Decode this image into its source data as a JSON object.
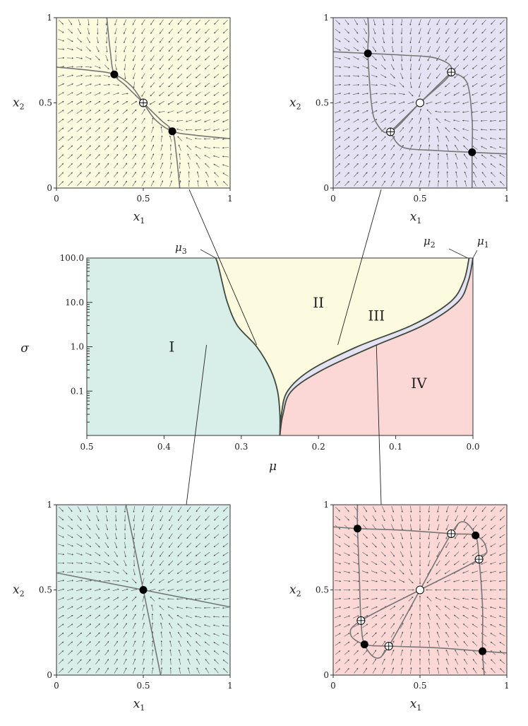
{
  "colors": {
    "region_I": "#d7eee9",
    "region_II": "#fcfbdf",
    "region_III": "#e4e2f3",
    "region_IV": "#fbd7d6",
    "boundary": "#3e4a3e",
    "nullcline": "#777777",
    "arrow": "#555555"
  },
  "chart_data": [
    {
      "id": "phase-diagram",
      "type": "area",
      "xlabel": "μ",
      "ylabel": "σ",
      "x_ticks": [
        "0.5",
        "0.4",
        "0.3",
        "0.2",
        "0.1",
        "0.0"
      ],
      "y_ticks": [
        "0.1",
        "1.0",
        "10.0",
        "100.0"
      ],
      "xlim": [
        0.5,
        0.0
      ],
      "ylim": [
        0.01,
        100
      ],
      "y_scale": "log",
      "regions": [
        "I",
        "II",
        "III",
        "IV"
      ],
      "boundary_labels": [
        {
          "symbol": "μ",
          "sub": "3"
        },
        {
          "symbol": "μ",
          "sub": "2"
        },
        {
          "symbol": "μ",
          "sub": "1"
        }
      ],
      "boundaries": {
        "mu3": {
          "mu": [
            0.25,
            0.25,
            0.253,
            0.262,
            0.28,
            0.305,
            0.318,
            0.325,
            0.33,
            0.333
          ],
          "sigma": [
            0.01,
            0.03,
            0.1,
            0.3,
            1.0,
            3.0,
            10,
            30,
            70,
            100
          ]
        },
        "mu2": {
          "mu": [
            0.25,
            0.248,
            0.24,
            0.21,
            0.15,
            0.08,
            0.03,
            0.012,
            0.005
          ],
          "sigma": [
            0.01,
            0.03,
            0.1,
            0.3,
            1.0,
            3.0,
            10,
            30,
            100
          ]
        },
        "mu1": {
          "mu": [
            0.25,
            0.246,
            0.235,
            0.195,
            0.13,
            0.065,
            0.02,
            0.006,
            0.0
          ],
          "sigma": [
            0.01,
            0.03,
            0.1,
            0.3,
            1.0,
            3.0,
            10,
            30,
            100
          ]
        }
      }
    },
    {
      "id": "phase-portrait-II",
      "type": "scatter",
      "region": "II",
      "xlabel": "x",
      "xlabel_sub": "1",
      "ylabel": "x",
      "ylabel_sub": "2",
      "x_ticks": [
        "0",
        "0.5",
        "1"
      ],
      "y_ticks": [
        "0",
        "0.5",
        "1"
      ],
      "xlim": [
        0,
        1
      ],
      "ylim": [
        0,
        1
      ],
      "fixed_points": [
        {
          "x": 0.333,
          "y": 0.667,
          "kind": "stable"
        },
        {
          "x": 0.5,
          "y": 0.5,
          "kind": "saddle"
        },
        {
          "x": 0.667,
          "y": 0.333,
          "kind": "stable"
        }
      ]
    },
    {
      "id": "phase-portrait-III",
      "type": "scatter",
      "region": "III",
      "xlabel": "x",
      "xlabel_sub": "1",
      "ylabel": "x",
      "ylabel_sub": "2",
      "x_ticks": [
        "0",
        "0.5",
        "1"
      ],
      "y_ticks": [
        "0",
        "0.5",
        "1"
      ],
      "xlim": [
        0,
        1
      ],
      "ylim": [
        0,
        1
      ],
      "fixed_points": [
        {
          "x": 0.2,
          "y": 0.79,
          "kind": "stable"
        },
        {
          "x": 0.8,
          "y": 0.21,
          "kind": "stable"
        },
        {
          "x": 0.68,
          "y": 0.68,
          "kind": "saddle"
        },
        {
          "x": 0.33,
          "y": 0.33,
          "kind": "saddle"
        },
        {
          "x": 0.5,
          "y": 0.5,
          "kind": "unstable"
        }
      ]
    },
    {
      "id": "phase-portrait-I",
      "type": "scatter",
      "region": "I",
      "xlabel": "x",
      "xlabel_sub": "1",
      "ylabel": "x",
      "ylabel_sub": "2",
      "x_ticks": [
        "0",
        "0.5",
        "1"
      ],
      "y_ticks": [
        "0",
        "0.5",
        "1"
      ],
      "xlim": [
        0,
        1
      ],
      "ylim": [
        0,
        1
      ],
      "fixed_points": [
        {
          "x": 0.5,
          "y": 0.5,
          "kind": "stable"
        }
      ]
    },
    {
      "id": "phase-portrait-IV",
      "type": "scatter",
      "region": "IV",
      "xlabel": "x",
      "xlabel_sub": "1",
      "ylabel": "x",
      "ylabel_sub": "2",
      "x_ticks": [
        "0",
        "0.5",
        "1"
      ],
      "y_ticks": [
        "0",
        "0.5",
        "1"
      ],
      "xlim": [
        0,
        1
      ],
      "ylim": [
        0,
        1
      ],
      "fixed_points": [
        {
          "x": 0.14,
          "y": 0.86,
          "kind": "stable"
        },
        {
          "x": 0.82,
          "y": 0.82,
          "kind": "stable"
        },
        {
          "x": 0.18,
          "y": 0.18,
          "kind": "stable"
        },
        {
          "x": 0.86,
          "y": 0.14,
          "kind": "stable"
        },
        {
          "x": 0.68,
          "y": 0.83,
          "kind": "saddle"
        },
        {
          "x": 0.84,
          "y": 0.68,
          "kind": "saddle"
        },
        {
          "x": 0.16,
          "y": 0.32,
          "kind": "saddle"
        },
        {
          "x": 0.32,
          "y": 0.17,
          "kind": "saddle"
        },
        {
          "x": 0.5,
          "y": 0.5,
          "kind": "unstable"
        }
      ]
    }
  ]
}
